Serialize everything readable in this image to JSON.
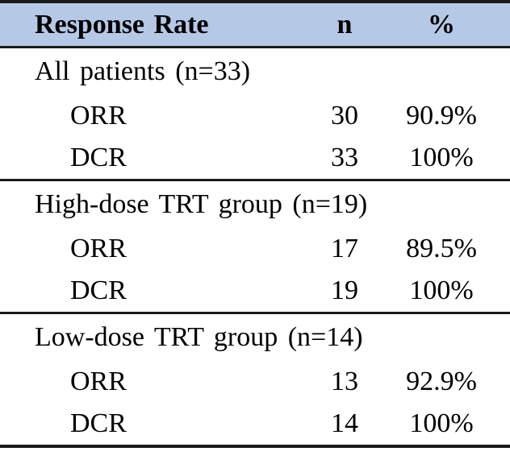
{
  "header": {
    "response_rate": "Response Rate",
    "n": "n",
    "percent": "%"
  },
  "sections": [
    {
      "title": "All patients (n=33)",
      "rows": [
        {
          "label": "ORR",
          "n": "30",
          "pct": "90.9%"
        },
        {
          "label": "DCR",
          "n": "33",
          "pct": "100%"
        }
      ]
    },
    {
      "title": "High-dose TRT group (n=19)",
      "rows": [
        {
          "label": "ORR",
          "n": "17",
          "pct": "89.5%"
        },
        {
          "label": "DCR",
          "n": "19",
          "pct": "100%"
        }
      ]
    },
    {
      "title": "Low-dose TRT group (n=14)",
      "rows": [
        {
          "label": "ORR",
          "n": "13",
          "pct": "92.9%"
        },
        {
          "label": "DCR",
          "n": "14",
          "pct": "100%"
        }
      ]
    }
  ],
  "colors": {
    "header_bg": "#B5C8E6",
    "border": "#1A1A1A",
    "text": "#000000",
    "page_bg": "#FFFFFF"
  },
  "chart_data": {
    "type": "table",
    "title": "Response Rate",
    "columns": [
      "Response Rate",
      "n",
      "%"
    ],
    "rows": [
      {
        "group": "All patients (n=33)",
        "measure": "ORR",
        "n": 30,
        "percent": 90.9
      },
      {
        "group": "All patients (n=33)",
        "measure": "DCR",
        "n": 33,
        "percent": 100
      },
      {
        "group": "High-dose TRT group (n=19)",
        "measure": "ORR",
        "n": 17,
        "percent": 89.5
      },
      {
        "group": "High-dose TRT group (n=19)",
        "measure": "DCR",
        "n": 19,
        "percent": 100
      },
      {
        "group": "Low-dose TRT group (n=14)",
        "measure": "ORR",
        "n": 13,
        "percent": 92.9
      },
      {
        "group": "Low-dose TRT group (n=14)",
        "measure": "DCR",
        "n": 14,
        "percent": 100
      }
    ]
  }
}
